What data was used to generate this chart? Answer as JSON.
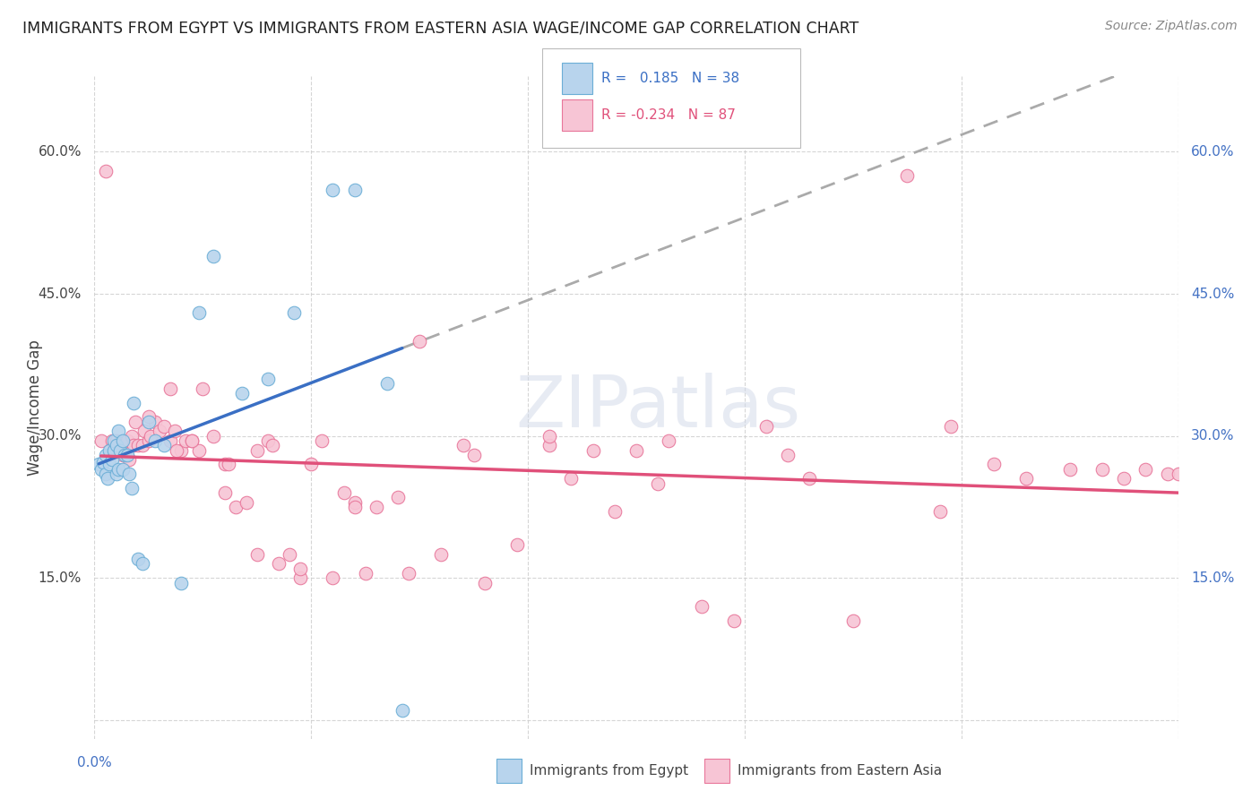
{
  "title": "IMMIGRANTS FROM EGYPT VS IMMIGRANTS FROM EASTERN ASIA WAGE/INCOME GAP CORRELATION CHART",
  "source": "Source: ZipAtlas.com",
  "ylabel": "Wage/Income Gap",
  "r_egypt": 0.185,
  "n_egypt": 38,
  "r_eastern_asia": -0.234,
  "n_eastern_asia": 87,
  "xlim": [
    0.0,
    0.5
  ],
  "ylim": [
    -0.02,
    0.68
  ],
  "yticks": [
    0.0,
    0.15,
    0.3,
    0.45,
    0.6
  ],
  "color_egypt_fill": "#b8d4ed",
  "color_egypt_edge": "#6baed6",
  "color_eastern_asia_fill": "#f7c5d5",
  "color_eastern_asia_edge": "#e8769a",
  "color_line_egypt": "#3a6fc4",
  "color_line_eastern_asia": "#e0507a",
  "color_dashed": "#aaaaaa",
  "background_color": "#ffffff",
  "grid_color": "#cccccc",
  "egypt_x": [
    0.002,
    0.003,
    0.004,
    0.005,
    0.005,
    0.006,
    0.007,
    0.007,
    0.008,
    0.009,
    0.009,
    0.01,
    0.01,
    0.011,
    0.011,
    0.012,
    0.013,
    0.013,
    0.014,
    0.015,
    0.016,
    0.017,
    0.018,
    0.02,
    0.022,
    0.025,
    0.028,
    0.032,
    0.04,
    0.048,
    0.055,
    0.068,
    0.08,
    0.092,
    0.11,
    0.12,
    0.135,
    0.142
  ],
  "egypt_y": [
    0.27,
    0.265,
    0.272,
    0.26,
    0.28,
    0.255,
    0.285,
    0.27,
    0.275,
    0.285,
    0.295,
    0.26,
    0.29,
    0.265,
    0.305,
    0.285,
    0.295,
    0.265,
    0.28,
    0.28,
    0.26,
    0.245,
    0.335,
    0.17,
    0.165,
    0.315,
    0.295,
    0.29,
    0.145,
    0.43,
    0.49,
    0.345,
    0.36,
    0.43,
    0.56,
    0.56,
    0.355,
    0.01
  ],
  "eastern_asia_x": [
    0.003,
    0.005,
    0.007,
    0.008,
    0.009,
    0.01,
    0.012,
    0.013,
    0.015,
    0.016,
    0.017,
    0.018,
    0.019,
    0.02,
    0.022,
    0.023,
    0.025,
    0.026,
    0.028,
    0.03,
    0.032,
    0.035,
    0.037,
    0.04,
    0.042,
    0.045,
    0.048,
    0.05,
    0.055,
    0.06,
    0.065,
    0.07,
    0.075,
    0.08,
    0.085,
    0.09,
    0.095,
    0.1,
    0.105,
    0.11,
    0.115,
    0.12,
    0.125,
    0.13,
    0.14,
    0.15,
    0.16,
    0.17,
    0.18,
    0.195,
    0.21,
    0.22,
    0.23,
    0.24,
    0.25,
    0.265,
    0.28,
    0.295,
    0.31,
    0.33,
    0.35,
    0.375,
    0.395,
    0.415,
    0.43,
    0.45,
    0.465,
    0.475,
    0.485,
    0.495,
    0.5,
    0.39,
    0.32,
    0.26,
    0.21,
    0.175,
    0.145,
    0.12,
    0.095,
    0.075,
    0.06,
    0.045,
    0.035,
    0.025,
    0.062,
    0.038,
    0.082
  ],
  "eastern_asia_y": [
    0.295,
    0.58,
    0.28,
    0.295,
    0.29,
    0.295,
    0.285,
    0.28,
    0.295,
    0.275,
    0.3,
    0.29,
    0.315,
    0.29,
    0.29,
    0.305,
    0.295,
    0.3,
    0.315,
    0.305,
    0.31,
    0.295,
    0.305,
    0.285,
    0.295,
    0.295,
    0.285,
    0.35,
    0.3,
    0.27,
    0.225,
    0.23,
    0.285,
    0.295,
    0.165,
    0.175,
    0.15,
    0.27,
    0.295,
    0.15,
    0.24,
    0.23,
    0.155,
    0.225,
    0.235,
    0.4,
    0.175,
    0.29,
    0.145,
    0.185,
    0.29,
    0.255,
    0.285,
    0.22,
    0.285,
    0.295,
    0.12,
    0.105,
    0.31,
    0.255,
    0.105,
    0.575,
    0.31,
    0.27,
    0.255,
    0.265,
    0.265,
    0.255,
    0.265,
    0.26,
    0.26,
    0.22,
    0.28,
    0.25,
    0.3,
    0.28,
    0.155,
    0.225,
    0.16,
    0.175,
    0.24,
    0.295,
    0.35,
    0.32,
    0.27,
    0.285,
    0.29
  ]
}
